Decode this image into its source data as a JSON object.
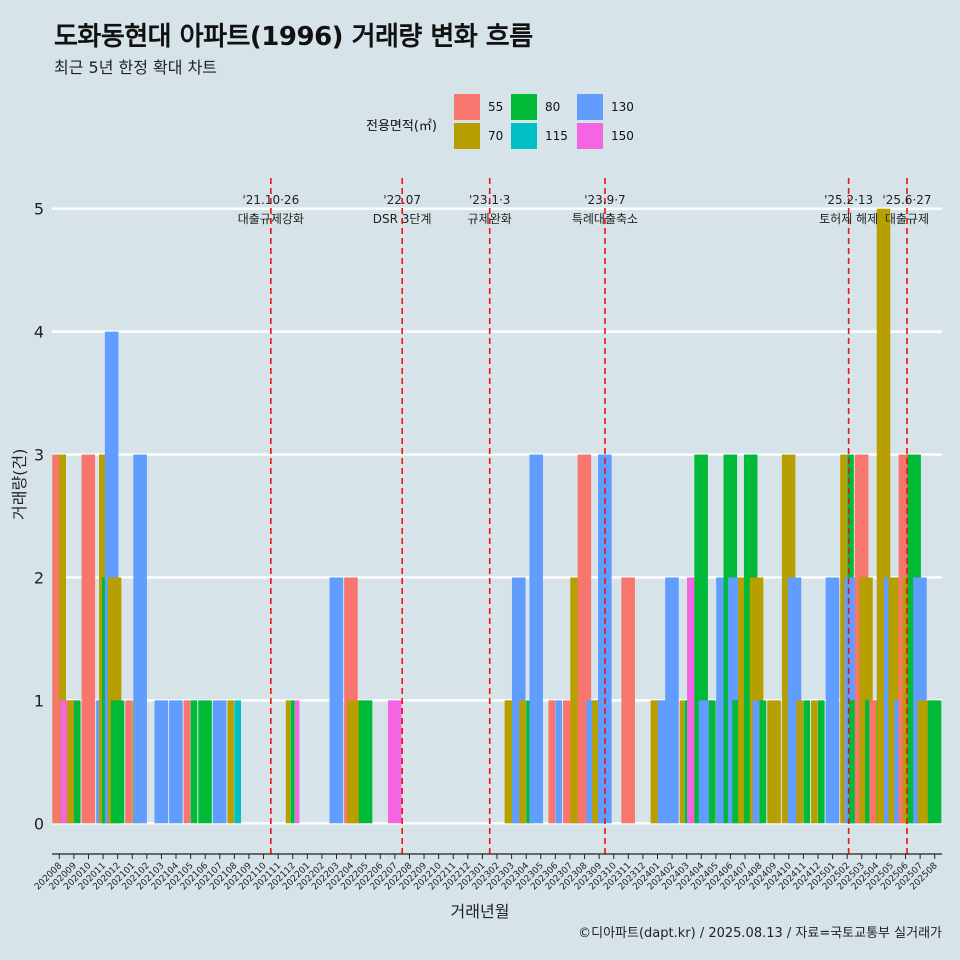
{
  "title": "도화동현대 아파트(1996) 거래량 변화 흐름",
  "subtitle": "최근 5년 한정 확대 차트",
  "caption": "©디아파트(dapt.kr) / 2025.08.13 / 자료=국토교통부 실거래가",
  "colors": {
    "background": "#d6e4ea",
    "vline": "#ee1111"
  },
  "chart_data": {
    "type": "bar",
    "title": "도화동현대 아파트(1996) 거래량 변화 흐름",
    "subtitle": "최근 5년 한정 확대 차트",
    "xlabel": "거래년월",
    "ylabel": "거래량(건)",
    "ylim": [
      -0.25,
      5.25
    ],
    "yticks": [
      0,
      1,
      2,
      3,
      4,
      5
    ],
    "grid": true,
    "legend_title": "전용면적(㎡)",
    "legend_position": "top",
    "categories": [
      "202008",
      "202009",
      "202010",
      "202011",
      "202012",
      "202101",
      "202102",
      "202103",
      "202104",
      "202105",
      "202106",
      "202107",
      "202108",
      "202109",
      "202110",
      "202111",
      "202112",
      "202201",
      "202202",
      "202203",
      "202204",
      "202205",
      "202206",
      "202207",
      "202208",
      "202209",
      "202210",
      "202211",
      "202212",
      "202301",
      "202302",
      "202303",
      "202304",
      "202305",
      "202306",
      "202307",
      "202308",
      "202309",
      "202310",
      "202311",
      "202312",
      "202401",
      "202402",
      "202403",
      "202404",
      "202405",
      "202406",
      "202407",
      "202408",
      "202409",
      "202410",
      "202411",
      "202412",
      "202501",
      "202502",
      "202503",
      "202504",
      "202505",
      "202506",
      "202507",
      "202508"
    ],
    "series": [
      {
        "name": "55",
        "color": "#f8766d"
      },
      {
        "name": "70",
        "color": "#b79f00"
      },
      {
        "name": "80",
        "color": "#00ba38"
      },
      {
        "name": "115",
        "color": "#00bfc4"
      },
      {
        "name": "130",
        "color": "#619cff"
      },
      {
        "name": "150",
        "color": "#f564e3"
      }
    ],
    "bars": [
      {
        "m": 0,
        "s": [
          "70"
        ],
        "v": 3
      },
      {
        "m": 0,
        "s": [
          "55",
          "70"
        ],
        "v": 3
      },
      {
        "m": 0.55,
        "s": [
          "150"
        ],
        "v": 1
      },
      {
        "m": 1,
        "s": [
          "70",
          "80"
        ],
        "v": 1
      },
      {
        "m": 2,
        "s": [
          "55"
        ],
        "v": 3
      },
      {
        "m": 3,
        "s": [
          "130"
        ],
        "v": 1
      },
      {
        "m": 3.2,
        "s": [
          "70"
        ],
        "v": 3
      },
      {
        "m": 3.4,
        "s": [
          "80"
        ],
        "v": 2
      },
      {
        "m": 3.6,
        "s": [
          "130"
        ],
        "v": 4
      },
      {
        "m": 3.8,
        "s": [
          "70"
        ],
        "v": 2
      },
      {
        "m": 4,
        "s": [
          "80"
        ],
        "v": 1
      },
      {
        "m": 5,
        "s": [
          "55",
          "70"
        ],
        "v": 1
      },
      {
        "m": 5.55,
        "s": [
          "130"
        ],
        "v": 3
      },
      {
        "m": 7,
        "s": [
          "130"
        ],
        "v": 1
      },
      {
        "m": 8,
        "s": [
          "130"
        ],
        "v": 1
      },
      {
        "m": 9,
        "s": [
          "55",
          "80"
        ],
        "v": 1
      },
      {
        "m": 10,
        "s": [
          "80"
        ],
        "v": 1
      },
      {
        "m": 11,
        "s": [
          "130"
        ],
        "v": 1
      },
      {
        "m": 12,
        "s": [
          "70",
          "115"
        ],
        "v": 1
      },
      {
        "m": 16,
        "s": [
          "70",
          "80",
          "150"
        ],
        "v": 1
      },
      {
        "m": 19,
        "s": [
          "130"
        ],
        "v": 2
      },
      {
        "m": 20,
        "s": [
          "55"
        ],
        "v": 2
      },
      {
        "m": 20.2,
        "s": [
          "70"
        ],
        "v": 1
      },
      {
        "m": 21,
        "s": [
          "80"
        ],
        "v": 1
      },
      {
        "m": 23,
        "s": [
          "150"
        ],
        "v": 1
      },
      {
        "m": 31,
        "s": [
          "70"
        ],
        "v": 1
      },
      {
        "m": 31.5,
        "s": [
          "130"
        ],
        "v": 2
      },
      {
        "m": 32,
        "s": [
          "70",
          "80"
        ],
        "v": 1
      },
      {
        "m": 32.7,
        "s": [
          "130"
        ],
        "v": 3
      },
      {
        "m": 34,
        "s": [
          "55",
          "130"
        ],
        "v": 1
      },
      {
        "m": 35,
        "s": [
          "55"
        ],
        "v": 1
      },
      {
        "m": 35.5,
        "s": [
          "70"
        ],
        "v": 2
      },
      {
        "m": 36,
        "s": [
          "55"
        ],
        "v": 3
      },
      {
        "m": 36.6,
        "s": [
          "130"
        ],
        "v": 1
      },
      {
        "m": 37,
        "s": [
          "70",
          "80"
        ],
        "v": 1
      },
      {
        "m": 37.4,
        "s": [
          "130"
        ],
        "v": 3
      },
      {
        "m": 39,
        "s": [
          "55"
        ],
        "v": 2
      },
      {
        "m": 41,
        "s": [
          "70"
        ],
        "v": 1
      },
      {
        "m": 41.5,
        "s": [
          "130"
        ],
        "v": 1
      },
      {
        "m": 42,
        "s": [
          "130"
        ],
        "v": 2
      },
      {
        "m": 43,
        "s": [
          "70",
          "80",
          "130"
        ],
        "v": 1
      },
      {
        "m": 43.5,
        "s": [
          "150"
        ],
        "v": 2
      },
      {
        "m": 44,
        "s": [
          "80"
        ],
        "v": 3
      },
      {
        "m": 44.3,
        "s": [
          "130"
        ],
        "v": 1
      },
      {
        "m": 45,
        "s": [
          "80",
          "70"
        ],
        "v": 1
      },
      {
        "m": 45.5,
        "s": [
          "130"
        ],
        "v": 2
      },
      {
        "m": 46,
        "s": [
          "80"
        ],
        "v": 3
      },
      {
        "m": 46.3,
        "s": [
          "130"
        ],
        "v": 2
      },
      {
        "m": 46.6,
        "s": [
          "80"
        ],
        "v": 1
      },
      {
        "m": 47,
        "s": [
          "70"
        ],
        "v": 2
      },
      {
        "m": 47.4,
        "s": [
          "80"
        ],
        "v": 3
      },
      {
        "m": 47.8,
        "s": [
          "70"
        ],
        "v": 2
      },
      {
        "m": 48,
        "s": [
          "130",
          "80"
        ],
        "v": 1
      },
      {
        "m": 49,
        "s": [
          "70"
        ],
        "v": 1
      },
      {
        "m": 50,
        "s": [
          "70"
        ],
        "v": 3
      },
      {
        "m": 50.4,
        "s": [
          "130"
        ],
        "v": 2
      },
      {
        "m": 51,
        "s": [
          "70",
          "80"
        ],
        "v": 1
      },
      {
        "m": 52,
        "s": [
          "70",
          "80"
        ],
        "v": 1
      },
      {
        "m": 53,
        "s": [
          "130"
        ],
        "v": 2
      },
      {
        "m": 54,
        "s": [
          "70",
          "80"
        ],
        "v": 3
      },
      {
        "m": 54.3,
        "s": [
          "130"
        ],
        "v": 2
      },
      {
        "m": 54.6,
        "s": [
          "80"
        ],
        "v": 1
      },
      {
        "m": 55,
        "s": [
          "55"
        ],
        "v": 3
      },
      {
        "m": 55.3,
        "s": [
          "70"
        ],
        "v": 2
      },
      {
        "m": 55.7,
        "s": [
          "80"
        ],
        "v": 1
      },
      {
        "m": 56,
        "s": [
          "55",
          "70"
        ],
        "v": 1
      },
      {
        "m": 56.5,
        "s": [
          "70"
        ],
        "v": 5
      },
      {
        "m": 57,
        "s": [
          "130"
        ],
        "v": 2
      },
      {
        "m": 57.3,
        "s": [
          "70"
        ],
        "v": 2
      },
      {
        "m": 57.7,
        "s": [
          "130"
        ],
        "v": 1
      },
      {
        "m": 58,
        "s": [
          "55"
        ],
        "v": 3
      },
      {
        "m": 58.3,
        "s": [
          "70"
        ],
        "v": 2
      },
      {
        "m": 58.6,
        "s": [
          "80"
        ],
        "v": 3
      },
      {
        "m": 59,
        "s": [
          "130"
        ],
        "v": 2
      },
      {
        "m": 59.3,
        "s": [
          "70"
        ],
        "v": 1
      },
      {
        "m": 60,
        "s": [
          "80"
        ],
        "v": 1
      }
    ],
    "events": [
      {
        "date": "'21.10·26",
        "label": "대출규제강화",
        "m": 14.5
      },
      {
        "date": "'22.07",
        "label": "DSR 3단계",
        "m": 23.5
      },
      {
        "date": "'23.1·3",
        "label": "규제완화",
        "m": 29.5
      },
      {
        "date": "'23.9·7",
        "label": "특례대출축소",
        "m": 37.4
      },
      {
        "date": "'25.2·13",
        "label": "토허제 해제",
        "m": 54.1
      },
      {
        "date": "'25.6·27",
        "label": "대출규제",
        "m": 58.1
      }
    ]
  }
}
